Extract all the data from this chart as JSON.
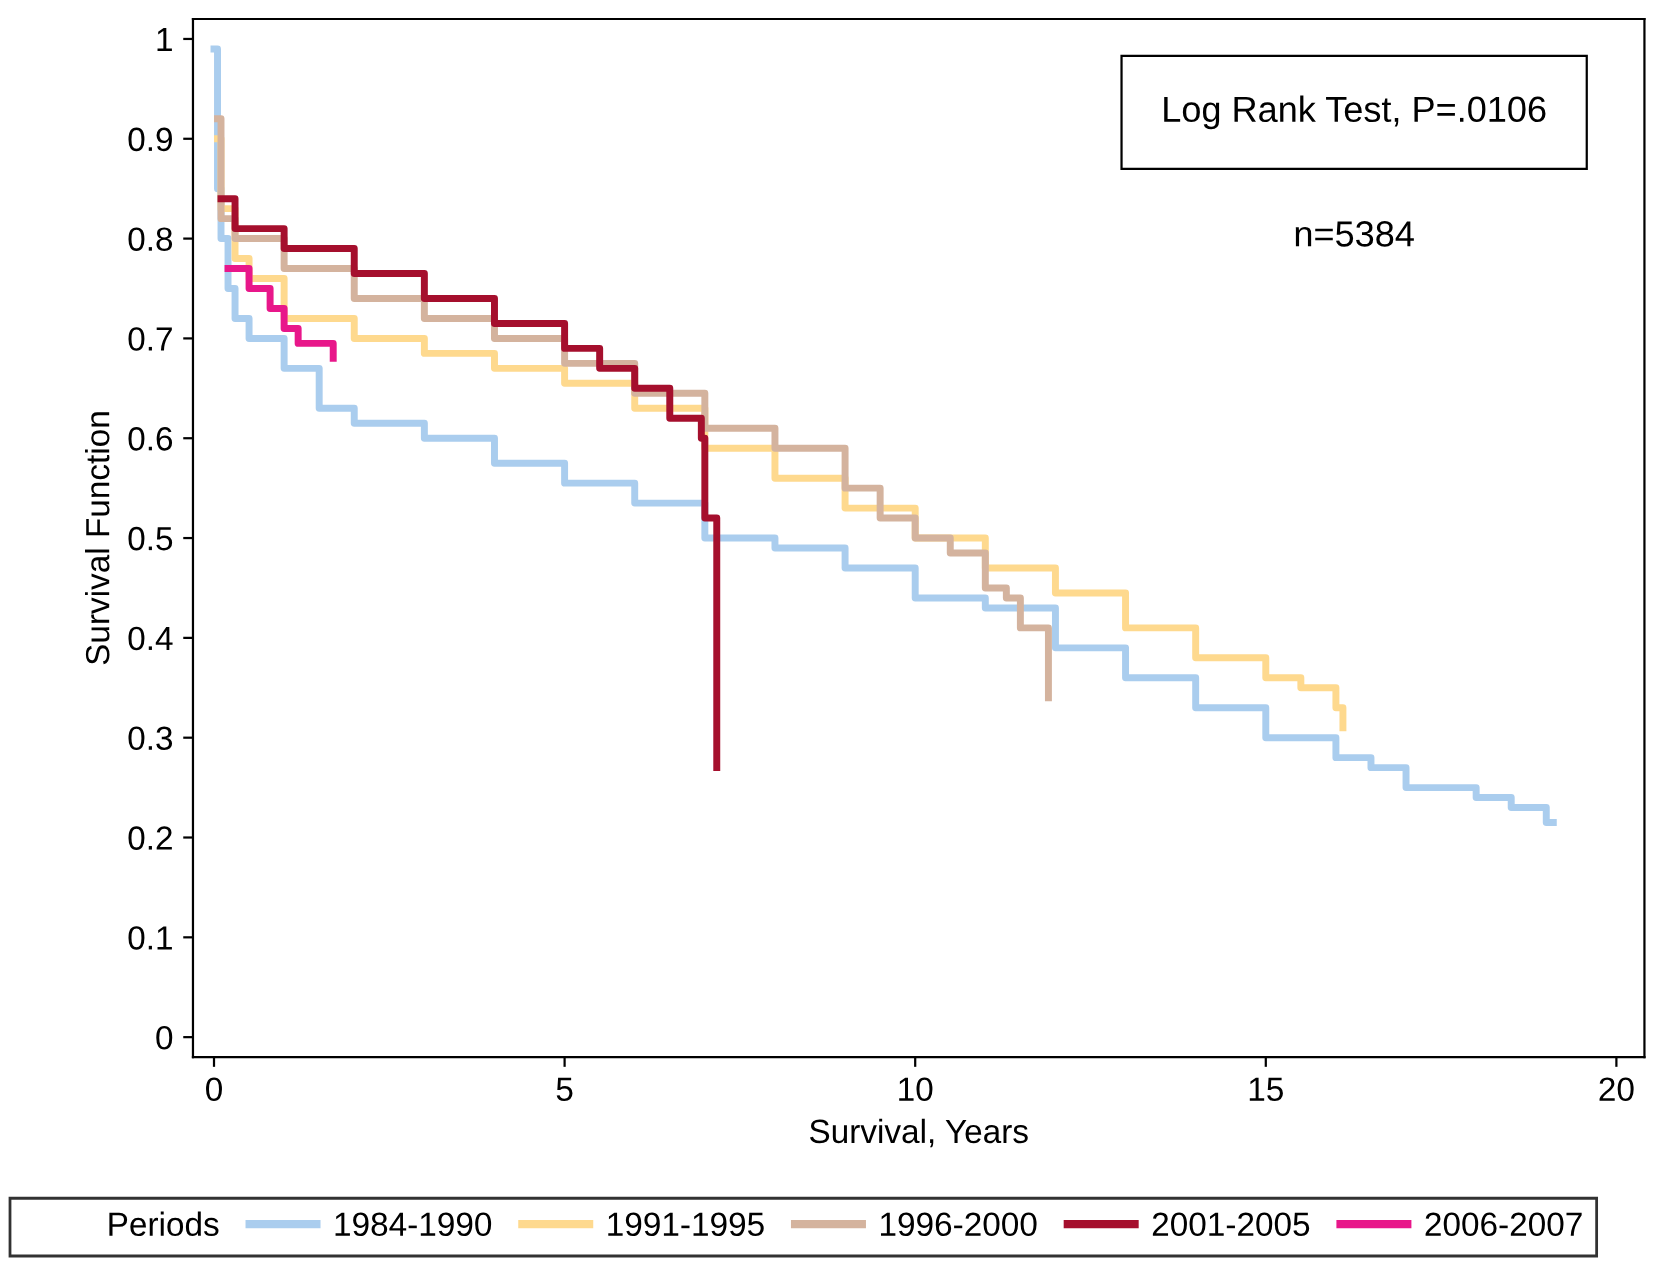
{
  "chart_data": {
    "type": "step",
    "xlabel": "Survival, Years",
    "ylabel": "Survival Function",
    "legend_title": "Periods",
    "legend": "bottom",
    "grid": false,
    "xlim": [
      -0.3,
      20.4
    ],
    "xticks": [
      0,
      5,
      10,
      15,
      20
    ],
    "ylim": [
      -0.02,
      1.02
    ],
    "yticks": [
      0,
      0.1,
      0.2,
      0.3,
      0.4,
      0.5,
      0.6,
      0.7,
      0.8,
      0.9,
      1
    ],
    "annotations": [
      "Log Rank Test, P=.0106",
      "n=5384"
    ],
    "series": [
      {
        "name": "1984-1990",
        "color": "#aacdee",
        "x": [
          0,
          0.05,
          0.1,
          0.2,
          0.3,
          0.5,
          1,
          1.5,
          2,
          3,
          4,
          5,
          6,
          7,
          8,
          9,
          10,
          11,
          12,
          13,
          14,
          15,
          16,
          16.5,
          17,
          18,
          18.5,
          19,
          19.1
        ],
        "values": [
          0.99,
          0.85,
          0.8,
          0.75,
          0.72,
          0.7,
          0.67,
          0.63,
          0.615,
          0.6,
          0.575,
          0.555,
          0.535,
          0.5,
          0.49,
          0.47,
          0.44,
          0.43,
          0.39,
          0.36,
          0.33,
          0.3,
          0.28,
          0.27,
          0.25,
          0.24,
          0.23,
          0.215,
          0.215
        ]
      },
      {
        "name": "1991-1995",
        "color": "#fed98e",
        "x": [
          0.05,
          0.1,
          0.3,
          0.5,
          1,
          2,
          3,
          4,
          5,
          6,
          7,
          8,
          9,
          10,
          11,
          12,
          13,
          14,
          15,
          15.5,
          16,
          16.1
        ],
        "values": [
          0.9,
          0.83,
          0.78,
          0.76,
          0.72,
          0.7,
          0.685,
          0.67,
          0.655,
          0.63,
          0.59,
          0.56,
          0.53,
          0.5,
          0.47,
          0.445,
          0.41,
          0.38,
          0.36,
          0.35,
          0.33,
          0.31
        ]
      },
      {
        "name": "1996-2000",
        "color": "#d4b39e",
        "x": [
          0.05,
          0.1,
          0.3,
          1,
          2,
          3,
          4,
          5,
          6,
          7,
          8,
          9,
          9.5,
          10,
          10.5,
          11,
          11.3,
          11.5,
          11.9,
          11.9
        ],
        "values": [
          0.92,
          0.82,
          0.8,
          0.77,
          0.74,
          0.72,
          0.7,
          0.675,
          0.645,
          0.61,
          0.59,
          0.55,
          0.52,
          0.5,
          0.485,
          0.45,
          0.44,
          0.41,
          0.41,
          0.34
        ]
      },
      {
        "name": "2001-2005",
        "color": "#a50f2d",
        "x": [
          0.1,
          0.3,
          1,
          2,
          3,
          4,
          5,
          5.5,
          6,
          6.5,
          6.95,
          7.0,
          7.17,
          7.17
        ],
        "values": [
          0.84,
          0.81,
          0.79,
          0.765,
          0.74,
          0.715,
          0.69,
          0.67,
          0.65,
          0.62,
          0.6,
          0.52,
          0.52,
          0.27
        ]
      },
      {
        "name": "2006-2007",
        "color": "#e8178a",
        "x": [
          0.2,
          0.5,
          0.8,
          1.0,
          1.2,
          1.7,
          1.7
        ],
        "values": [
          0.77,
          0.75,
          0.73,
          0.71,
          0.695,
          0.695,
          0.68
        ]
      }
    ]
  }
}
